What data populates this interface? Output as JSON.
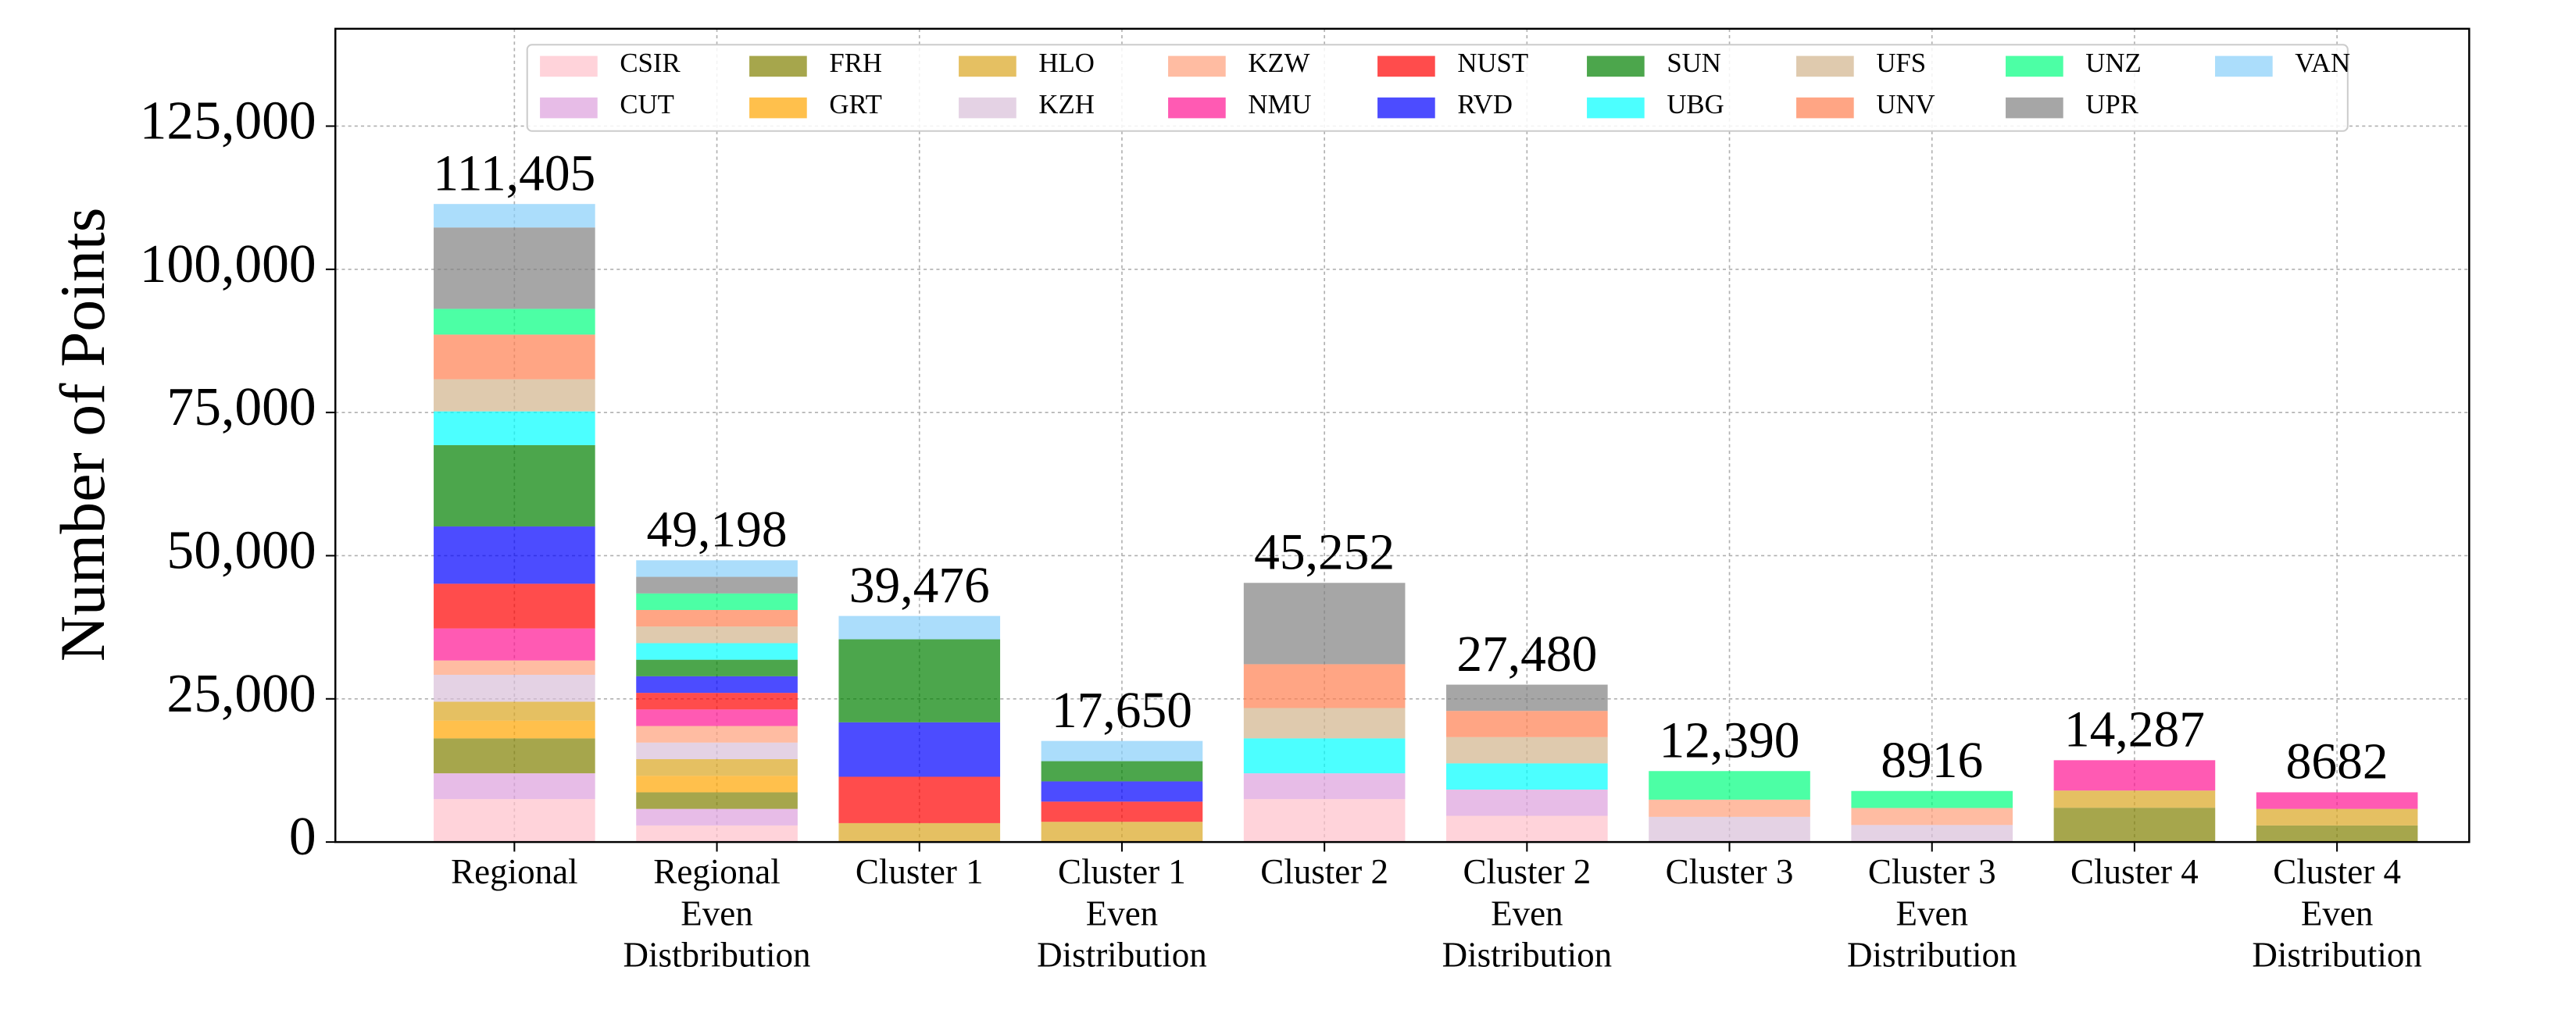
{
  "chart_data": {
    "type": "stacked-bar",
    "y_label": "Number of Points",
    "categories": [
      [
        "Regional"
      ],
      [
        "Regional",
        "Even",
        "Distbribution"
      ],
      [
        "Cluster 1"
      ],
      [
        "Cluster 1",
        "Even",
        "Distribution"
      ],
      [
        "Cluster 2"
      ],
      [
        "Cluster 2",
        "Even",
        "Distribution"
      ],
      [
        "Cluster 3"
      ],
      [
        "Cluster 3",
        "Even",
        "Distribution"
      ],
      [
        "Cluster 4"
      ],
      [
        "Cluster 4",
        "Even",
        "Distribution"
      ]
    ],
    "series": [
      {
        "name": "CSIR",
        "color": "#FFC0CB",
        "values": [
          7500,
          2894,
          0,
          0,
          7500,
          4580,
          0,
          0,
          0,
          0
        ]
      },
      {
        "name": "CUT",
        "color": "#DDA0DD",
        "values": [
          4500,
          2894,
          0,
          0,
          4500,
          4580,
          0,
          0,
          0,
          0
        ]
      },
      {
        "name": "FRH",
        "color": "#808000",
        "values": [
          6100,
          2894,
          0,
          0,
          0,
          0,
          0,
          0,
          5987,
          2894
        ]
      },
      {
        "name": "GRT",
        "color": "#FFA500",
        "values": [
          3100,
          2894,
          0,
          0,
          0,
          0,
          0,
          0,
          0,
          0
        ]
      },
      {
        "name": "HLO",
        "color": "#DAA520",
        "values": [
          3300,
          2894,
          3300,
          3530,
          0,
          0,
          0,
          0,
          3000,
          2894
        ]
      },
      {
        "name": "KZH",
        "color": "#D8BFD8",
        "values": [
          4700,
          2894,
          0,
          0,
          0,
          0,
          4400,
          2972,
          0,
          0
        ]
      },
      {
        "name": "KZW",
        "color": "#FFA07A",
        "values": [
          2500,
          2894,
          0,
          0,
          0,
          0,
          3000,
          2972,
          0,
          0
        ]
      },
      {
        "name": "NMU",
        "color": "#FF1493",
        "values": [
          5600,
          2894,
          0,
          0,
          0,
          0,
          0,
          0,
          5300,
          2894
        ]
      },
      {
        "name": "NUST",
        "color": "#FF0000",
        "values": [
          7800,
          2894,
          8100,
          3530,
          0,
          0,
          0,
          0,
          0,
          0
        ]
      },
      {
        "name": "RVD",
        "color": "#0000FF",
        "values": [
          10000,
          2894,
          9500,
          3530,
          0,
          0,
          0,
          0,
          0,
          0
        ]
      },
      {
        "name": "SUN",
        "color": "#008000",
        "values": [
          14200,
          2894,
          14500,
          3530,
          0,
          0,
          0,
          0,
          0,
          0
        ]
      },
      {
        "name": "UBG",
        "color": "#00FFFF",
        "values": [
          5900,
          2894,
          0,
          0,
          6100,
          4580,
          0,
          0,
          0,
          0
        ]
      },
      {
        "name": "UFS",
        "color": "#D2B48C",
        "values": [
          5600,
          2894,
          0,
          0,
          5300,
          4580,
          0,
          0,
          0,
          0
        ]
      },
      {
        "name": "UNV",
        "color": "#FF7F50",
        "values": [
          7800,
          2894,
          0,
          0,
          7652,
          4580,
          0,
          0,
          0,
          0
        ]
      },
      {
        "name": "UNZ",
        "color": "#00FF7F",
        "values": [
          4500,
          2894,
          0,
          0,
          0,
          0,
          4990,
          2972,
          0,
          0
        ]
      },
      {
        "name": "UPR",
        "color": "#808080",
        "values": [
          14200,
          2894,
          0,
          0,
          14200,
          4580,
          0,
          0,
          0,
          0
        ]
      },
      {
        "name": "VAN",
        "color": "#87CEFA",
        "values": [
          4105,
          2894,
          4076,
          3530,
          0,
          0,
          0,
          0,
          0,
          0
        ]
      }
    ],
    "totals": [
      111405,
      49198,
      39476,
      17650,
      45252,
      27480,
      12390,
      8916,
      14287,
      8682
    ],
    "value_labels": [
      "111,405",
      "49,198",
      "39,476",
      "17,650",
      "45,252",
      "27,480",
      "12,390",
      "8916",
      "14,287",
      "8682"
    ],
    "ylim": [
      0,
      142000
    ],
    "yticks": [
      0,
      {
        "value": 25000,
        "label": "25,000"
      },
      {
        "value": 50000,
        "label": "50,000"
      },
      {
        "value": 75000,
        "label": "75,000"
      },
      {
        "value": 100000,
        "label": "100,000"
      },
      {
        "value": 125000,
        "label": "125,000"
      }
    ],
    "grid": true,
    "legend": "upper center"
  }
}
